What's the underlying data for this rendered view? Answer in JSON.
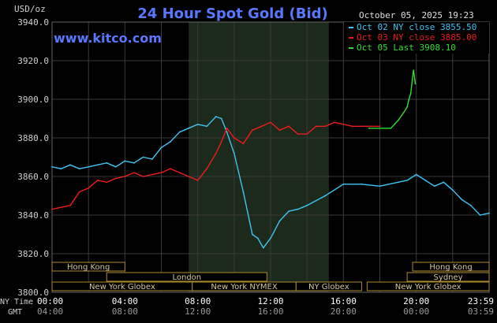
{
  "chart_data": {
    "type": "line",
    "title": "24 Hour Spot Gold (Bid)",
    "ylabel": "USD/oz",
    "watermark": "www.kitco.com",
    "timestamp": "October 05, 2025 19:23",
    "ylim": [
      3800,
      3940
    ],
    "y_ticks": [
      "3940.0",
      "3920.0",
      "3900.0",
      "3880.0",
      "3860.0",
      "3840.0",
      "3820.0",
      "3800.0"
    ],
    "x_ticks_ny": [
      "00:00",
      "04:00",
      "08:00",
      "12:00",
      "16:00",
      "20:00",
      "23:59"
    ],
    "x_ticks_gmt": [
      "04:00",
      "08:00",
      "12:00",
      "16:00",
      "20:00",
      "00:00",
      "03:59"
    ],
    "x_row_labels": {
      "ny": "NY Time",
      "gmt": "GMT"
    },
    "grid": true,
    "legend_position": "top-right",
    "shaded_region_hours": [
      7.5,
      15.2
    ],
    "colors": {
      "background": "#000000",
      "title": "#5a78ff",
      "grid": "#3a3a3a",
      "axis_text": "#d0d0d0",
      "session_bar": "#b08a30",
      "session_text": "#d8c89a",
      "shade": "#1b2a1b",
      "series_oct02": "#3fc4f4",
      "series_oct03": "#ee1c1c",
      "series_oct05": "#33dd33"
    },
    "series": [
      {
        "name": "Oct 02 NY close 3855.50",
        "color": "#3fc4f4",
        "x": [
          0,
          0.5,
          1,
          1.5,
          2,
          2.5,
          3,
          3.5,
          4,
          4.5,
          5,
          5.5,
          6,
          6.5,
          7,
          7.5,
          8,
          8.5,
          9,
          9.3,
          9.6,
          10,
          10.5,
          11,
          11.3,
          11.6,
          12,
          12.5,
          13,
          13.5,
          14,
          15,
          16,
          17,
          18,
          19,
          19.5,
          20,
          20.5,
          21,
          21.5,
          22,
          22.5,
          23,
          23.5,
          24
        ],
        "y": [
          3865,
          3864,
          3866,
          3864,
          3865,
          3866,
          3867,
          3865,
          3868,
          3867,
          3870,
          3869,
          3875,
          3878,
          3883,
          3885,
          3887,
          3886,
          3891,
          3890,
          3883,
          3872,
          3852,
          3830,
          3828,
          3823,
          3828,
          3837,
          3842,
          3843,
          3845,
          3850,
          3856,
          3856,
          3855,
          3857,
          3858,
          3861,
          3858,
          3855,
          3857,
          3853,
          3848,
          3845,
          3840,
          3841
        ]
      },
      {
        "name": "Oct 03 NY close 3885.00",
        "color": "#ee1c1c",
        "x": [
          0,
          0.5,
          1,
          1.5,
          2,
          2.5,
          3,
          3.5,
          4,
          4.5,
          5,
          5.5,
          6,
          6.5,
          7,
          7.5,
          8,
          8.5,
          9,
          9.3,
          9.6,
          10,
          10.5,
          11,
          11.5,
          12,
          12.5,
          13,
          13.5,
          14,
          14.5,
          15,
          15.5,
          16,
          16.5,
          17,
          17.5,
          18
        ],
        "y": [
          3843,
          3844,
          3845,
          3852,
          3854,
          3858,
          3857,
          3859,
          3860,
          3862,
          3860,
          3861,
          3862,
          3864,
          3862,
          3860,
          3858,
          3864,
          3872,
          3878,
          3885,
          3880,
          3877,
          3884,
          3886,
          3888,
          3884,
          3886,
          3882,
          3882,
          3886,
          3886,
          3888,
          3887,
          3886,
          3886,
          3886,
          3886
        ]
      },
      {
        "name": "Oct 05 Last 3908.10",
        "color": "#33dd33",
        "x": [
          17.4,
          18.6,
          18.8,
          19.0,
          19.3,
          19.5,
          19.6,
          19.7,
          19.78,
          19.85,
          19.95
        ],
        "y": [
          3885,
          3885,
          3887,
          3889,
          3893,
          3896,
          3900,
          3903,
          3910,
          3915,
          3908
        ]
      }
    ],
    "sessions": [
      {
        "label": "Hong Kong",
        "row": 1,
        "start": 0,
        "end": 4.0
      },
      {
        "label": "Hong Kong",
        "row": 1,
        "start": 19.8,
        "end": 24
      },
      {
        "label": "London",
        "row": 2,
        "start": 3.0,
        "end": 11.8
      },
      {
        "label": "Sydney",
        "row": 2,
        "start": 19.5,
        "end": 24
      },
      {
        "label": "New York Globex",
        "row": 3,
        "start": 0,
        "end": 7.7
      },
      {
        "label": "New York NYMEX",
        "row": 3,
        "start": 7.7,
        "end": 13.4
      },
      {
        "label": "NY Globex",
        "row": 3,
        "start": 13.4,
        "end": 17.0
      },
      {
        "label": "New York Globex",
        "row": 3,
        "start": 17.3,
        "end": 24
      }
    ]
  }
}
